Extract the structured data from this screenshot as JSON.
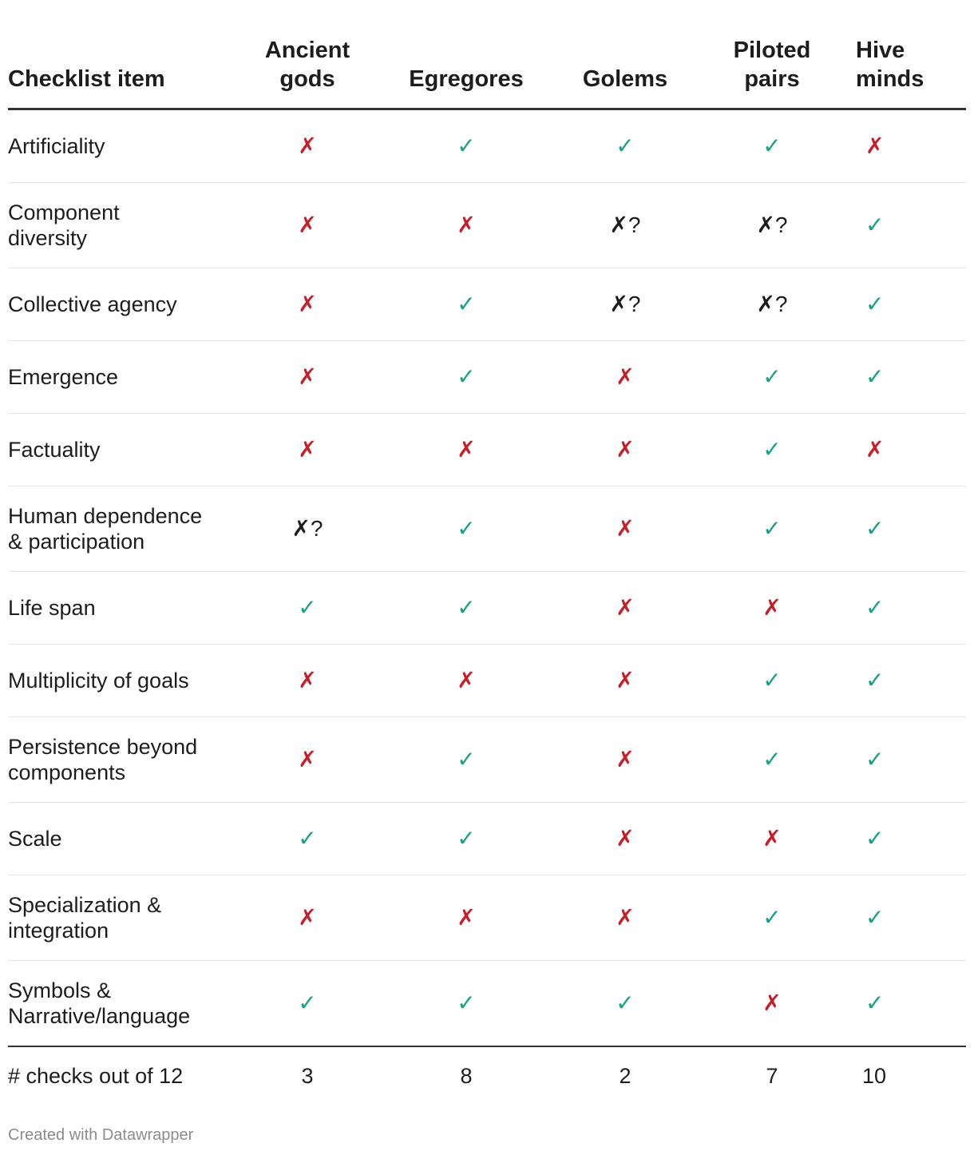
{
  "header": {
    "item": "Checklist item",
    "columns": [
      "Ancient gods",
      "Egregores",
      "Golems",
      "Piloted pairs",
      "Hive minds"
    ]
  },
  "marks": {
    "yes": "✓",
    "no": "✗",
    "maybe": "✗?"
  },
  "colors": {
    "yes": "#17a085",
    "no": "#c5202a",
    "maybe": "#1d1d1d"
  },
  "rows": [
    {
      "label": "Artificiality",
      "values": [
        "no",
        "yes",
        "yes",
        "yes",
        "no"
      ]
    },
    {
      "label": "Component diversity",
      "values": [
        "no",
        "no",
        "maybe",
        "maybe",
        "yes"
      ]
    },
    {
      "label": "Collective agency",
      "values": [
        "no",
        "yes",
        "maybe",
        "maybe",
        "yes"
      ]
    },
    {
      "label": "Emergence",
      "values": [
        "no",
        "yes",
        "no",
        "yes",
        "yes"
      ]
    },
    {
      "label": "Factuality",
      "values": [
        "no",
        "no",
        "no",
        "yes",
        "no"
      ]
    },
    {
      "label": "Human dependence & participation",
      "values": [
        "maybe",
        "yes",
        "no",
        "yes",
        "yes"
      ]
    },
    {
      "label": "Life span",
      "values": [
        "yes",
        "yes",
        "no",
        "no",
        "yes"
      ]
    },
    {
      "label": "Multiplicity of goals",
      "values": [
        "no",
        "no",
        "no",
        "yes",
        "yes"
      ]
    },
    {
      "label": "Persistence beyond components",
      "values": [
        "no",
        "yes",
        "no",
        "yes",
        "yes"
      ]
    },
    {
      "label": "Scale",
      "values": [
        "yes",
        "yes",
        "no",
        "no",
        "yes"
      ]
    },
    {
      "label": "Specialization & integration",
      "values": [
        "no",
        "no",
        "no",
        "yes",
        "yes"
      ]
    },
    {
      "label": "Symbols & Narrative/language",
      "values": [
        "yes",
        "yes",
        "yes",
        "no",
        "yes"
      ]
    }
  ],
  "footer": {
    "label": "# checks out of 12",
    "values": [
      "3",
      "8",
      "2",
      "7",
      "10"
    ]
  },
  "credit": "Created with Datawrapper"
}
